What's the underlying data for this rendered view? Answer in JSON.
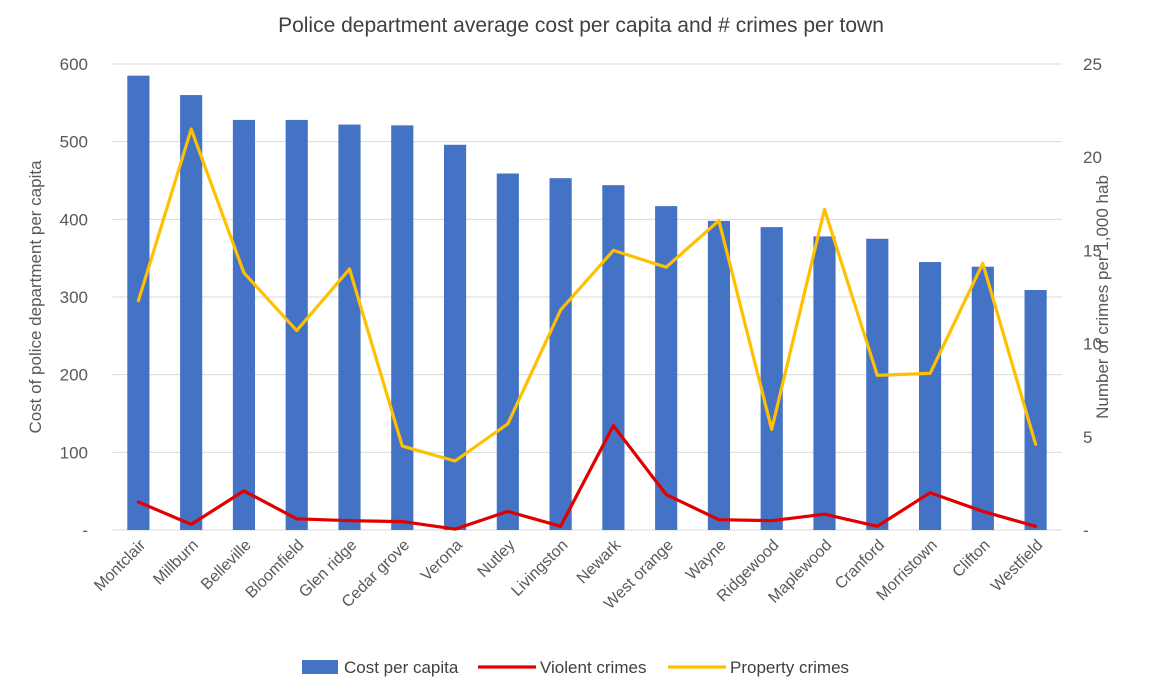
{
  "chart_data": {
    "type": "bar",
    "title": "Police department average cost per capita and # crimes per town",
    "categories": [
      "Montclair",
      "Millburn",
      "Belleville",
      "Bloomfield",
      "Glen ridge",
      "Cedar grove",
      "Verona",
      "Nutley",
      "Livingston",
      "Newark",
      "West orange",
      "Wayne",
      "Ridgewood",
      "Maplewood",
      "Cranford",
      "Morristown",
      "Clifton",
      "Westfield"
    ],
    "series": [
      {
        "name": "Cost per capita",
        "type": "bar",
        "axis": "left",
        "color": "#4472C4",
        "values": [
          585,
          560,
          528,
          528,
          522,
          521,
          496,
          459,
          453,
          444,
          417,
          398,
          390,
          378,
          375,
          345,
          339,
          309
        ]
      },
      {
        "name": "Violent crimes",
        "type": "line",
        "axis": "right",
        "color": "#E00000",
        "values": [
          1.5,
          0.3,
          2.1,
          0.6,
          0.5,
          0.45,
          0.05,
          1.0,
          0.2,
          5.6,
          1.9,
          0.55,
          0.5,
          0.85,
          0.2,
          2.0,
          1.0,
          0.2
        ]
      },
      {
        "name": "Property crimes",
        "type": "line",
        "axis": "right",
        "color": "#FFC000",
        "values": [
          12.3,
          21.5,
          13.8,
          10.7,
          14.0,
          4.5,
          3.7,
          5.7,
          11.8,
          15.0,
          14.1,
          16.6,
          5.4,
          17.2,
          8.3,
          8.4,
          14.3,
          4.6
        ]
      }
    ],
    "ylabel": "Cost of police department per capita",
    "y2label": "Number of crimes per 1,000 hab",
    "ylim": [
      0,
      600
    ],
    "y2lim": [
      0,
      25
    ],
    "yticks": [
      "-",
      "100",
      "200",
      "300",
      "400",
      "500",
      "600"
    ],
    "y2ticks": [
      "-",
      "5",
      "10",
      "15",
      "20",
      "25"
    ],
    "grid": true,
    "legend_position": "bottom"
  }
}
